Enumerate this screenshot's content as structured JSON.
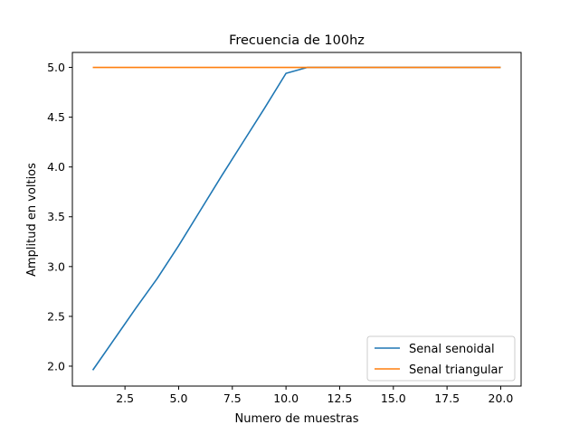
{
  "chart_data": {
    "type": "line",
    "title": "Frecuencia de 100hz",
    "xlabel": "Numero de muestras",
    "ylabel": "Amplitud en voltios",
    "xlim": [
      0.05,
      20.95
    ],
    "ylim": [
      1.8,
      5.15
    ],
    "xticks": [
      2.5,
      5.0,
      7.5,
      10.0,
      12.5,
      15.0,
      17.5,
      20.0
    ],
    "xtick_labels": [
      "2.5",
      "5.0",
      "7.5",
      "10.0",
      "12.5",
      "15.0",
      "17.5",
      "20.0"
    ],
    "yticks": [
      2.0,
      2.5,
      3.0,
      3.5,
      4.0,
      4.5,
      5.0
    ],
    "ytick_labels": [
      "2.0",
      "2.5",
      "3.0",
      "3.5",
      "4.0",
      "4.5",
      "5.0"
    ],
    "grid": false,
    "legend_position": "lower right",
    "series": [
      {
        "name": "Senal senoidal",
        "color": "#1f77b4",
        "x": [
          1,
          2,
          3,
          4,
          5,
          6,
          7,
          8,
          9,
          10,
          11,
          12,
          13,
          14,
          15,
          16,
          17,
          18,
          19,
          20
        ],
        "y": [
          1.96,
          2.27,
          2.58,
          2.88,
          3.21,
          3.56,
          3.91,
          4.25,
          4.59,
          4.94,
          5.0,
          5.0,
          5.0,
          5.0,
          5.0,
          5.0,
          5.0,
          5.0,
          5.0,
          5.0
        ]
      },
      {
        "name": "Senal triangular",
        "color": "#ff7f0e",
        "x": [
          1,
          2,
          3,
          4,
          5,
          6,
          7,
          8,
          9,
          10,
          11,
          12,
          13,
          14,
          15,
          16,
          17,
          18,
          19,
          20
        ],
        "y": [
          5.0,
          5.0,
          5.0,
          5.0,
          5.0,
          5.0,
          5.0,
          5.0,
          5.0,
          5.0,
          5.0,
          5.0,
          5.0,
          5.0,
          5.0,
          5.0,
          5.0,
          5.0,
          5.0,
          5.0
        ]
      }
    ]
  }
}
